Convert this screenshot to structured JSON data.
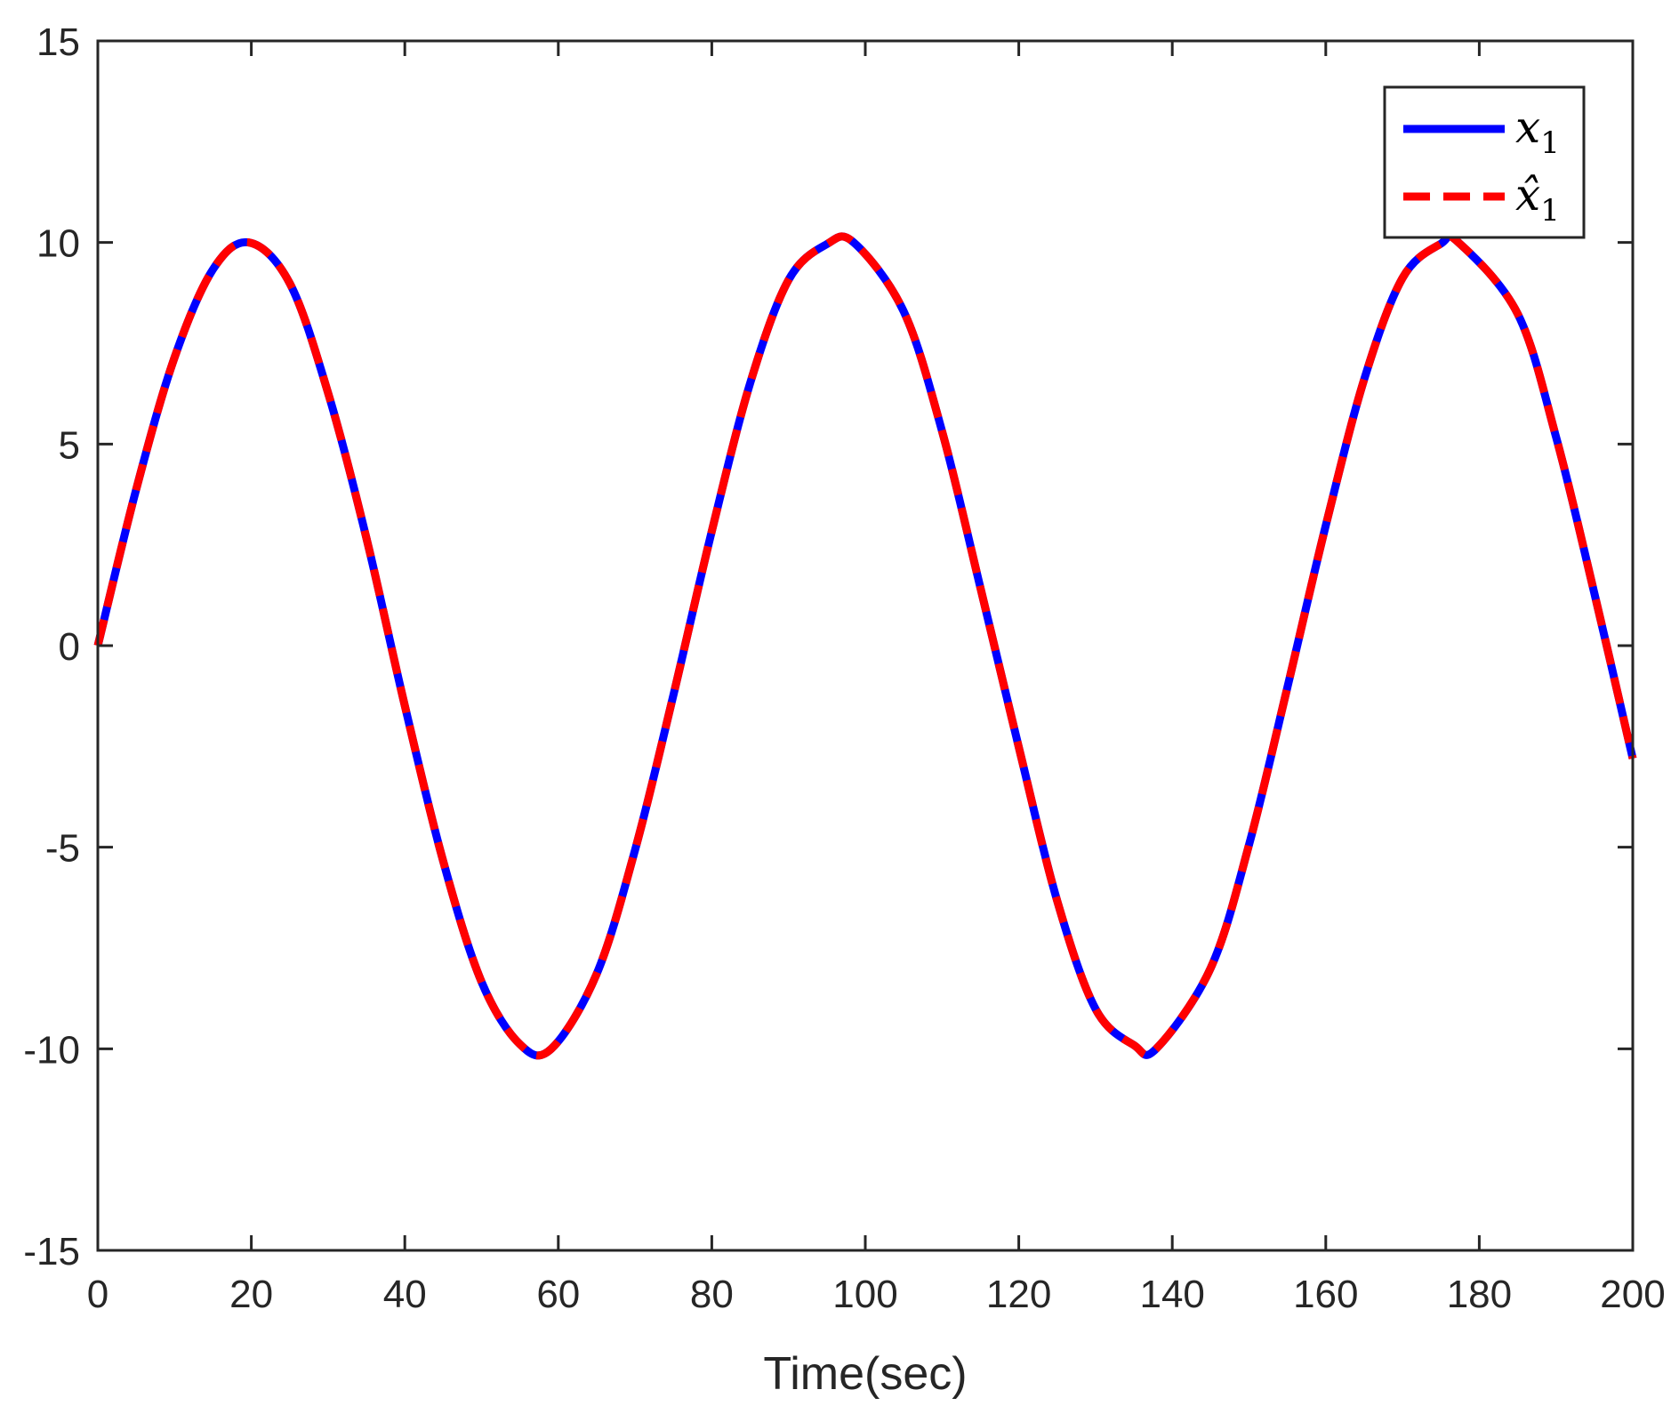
{
  "chart_data": {
    "type": "line",
    "title": "",
    "xlabel": "Time(sec)",
    "ylabel": "",
    "xlim": [
      0,
      200
    ],
    "ylim": [
      -15,
      15
    ],
    "xticks": [
      0,
      20,
      40,
      60,
      80,
      100,
      120,
      140,
      160,
      180,
      200
    ],
    "yticks": [
      -15,
      -10,
      -5,
      0,
      5,
      10,
      15
    ],
    "xtick_labels": [
      "0",
      "20",
      "40",
      "60",
      "80",
      "100",
      "120",
      "140",
      "160",
      "180",
      "200"
    ],
    "ytick_labels": [
      "-15",
      "-10",
      "-5",
      "0",
      "5",
      "10",
      "15"
    ],
    "grid": false,
    "legend_position": "top-right",
    "series": [
      {
        "name": "x1",
        "label_main": "x",
        "label_sub": "1",
        "color": "#0000ff",
        "style": "solid",
        "x": [
          0,
          5,
          10,
          15,
          19.7,
          25,
          30,
          35,
          40,
          45,
          50,
          55,
          59.1,
          65,
          70,
          75,
          80,
          85,
          90,
          95,
          98.5,
          105,
          110,
          115,
          120,
          125,
          130,
          135,
          137.9,
          145,
          150,
          155,
          160,
          165,
          170,
          175,
          177.3,
          185,
          190,
          195,
          200
        ],
        "y": [
          0,
          3.88,
          7.15,
          9.33,
          10.0,
          8.99,
          6.27,
          2.67,
          -1.49,
          -5.35,
          -8.34,
          -9.89,
          -10.0,
          -8.14,
          -5.07,
          -1.22,
          2.84,
          6.51,
          9.07,
          9.96,
          10.0,
          8.29,
          5.32,
          1.44,
          -2.52,
          -6.33,
          -9.01,
          -9.91,
          -10.0,
          -8.0,
          -4.94,
          -1.03,
          2.98,
          6.6,
          9.12,
          9.97,
          10.0,
          8.23,
          5.18,
          1.3,
          -2.8
        ]
      },
      {
        "name": "x̂1",
        "label_main": "x̂",
        "label_sub": "1",
        "color": "#ff0000",
        "style": "dashed",
        "x": [
          0,
          5,
          10,
          15,
          19.7,
          25,
          30,
          35,
          40,
          45,
          50,
          55,
          59.1,
          65,
          70,
          75,
          80,
          85,
          90,
          95,
          98.5,
          105,
          110,
          115,
          120,
          125,
          130,
          135,
          137.9,
          145,
          150,
          155,
          160,
          165,
          170,
          175,
          177.3,
          185,
          190,
          195,
          200
        ],
        "y": [
          0,
          3.88,
          7.15,
          9.33,
          10.0,
          8.99,
          6.27,
          2.67,
          -1.49,
          -5.35,
          -8.34,
          -9.89,
          -10.0,
          -8.14,
          -5.07,
          -1.22,
          2.84,
          6.51,
          9.07,
          9.96,
          10.0,
          8.29,
          5.32,
          1.44,
          -2.52,
          -6.33,
          -9.01,
          -9.91,
          -10.0,
          -8.0,
          -4.94,
          -1.03,
          2.98,
          6.6,
          9.12,
          9.97,
          10.0,
          8.23,
          5.18,
          1.3,
          -2.8
        ]
      }
    ]
  }
}
